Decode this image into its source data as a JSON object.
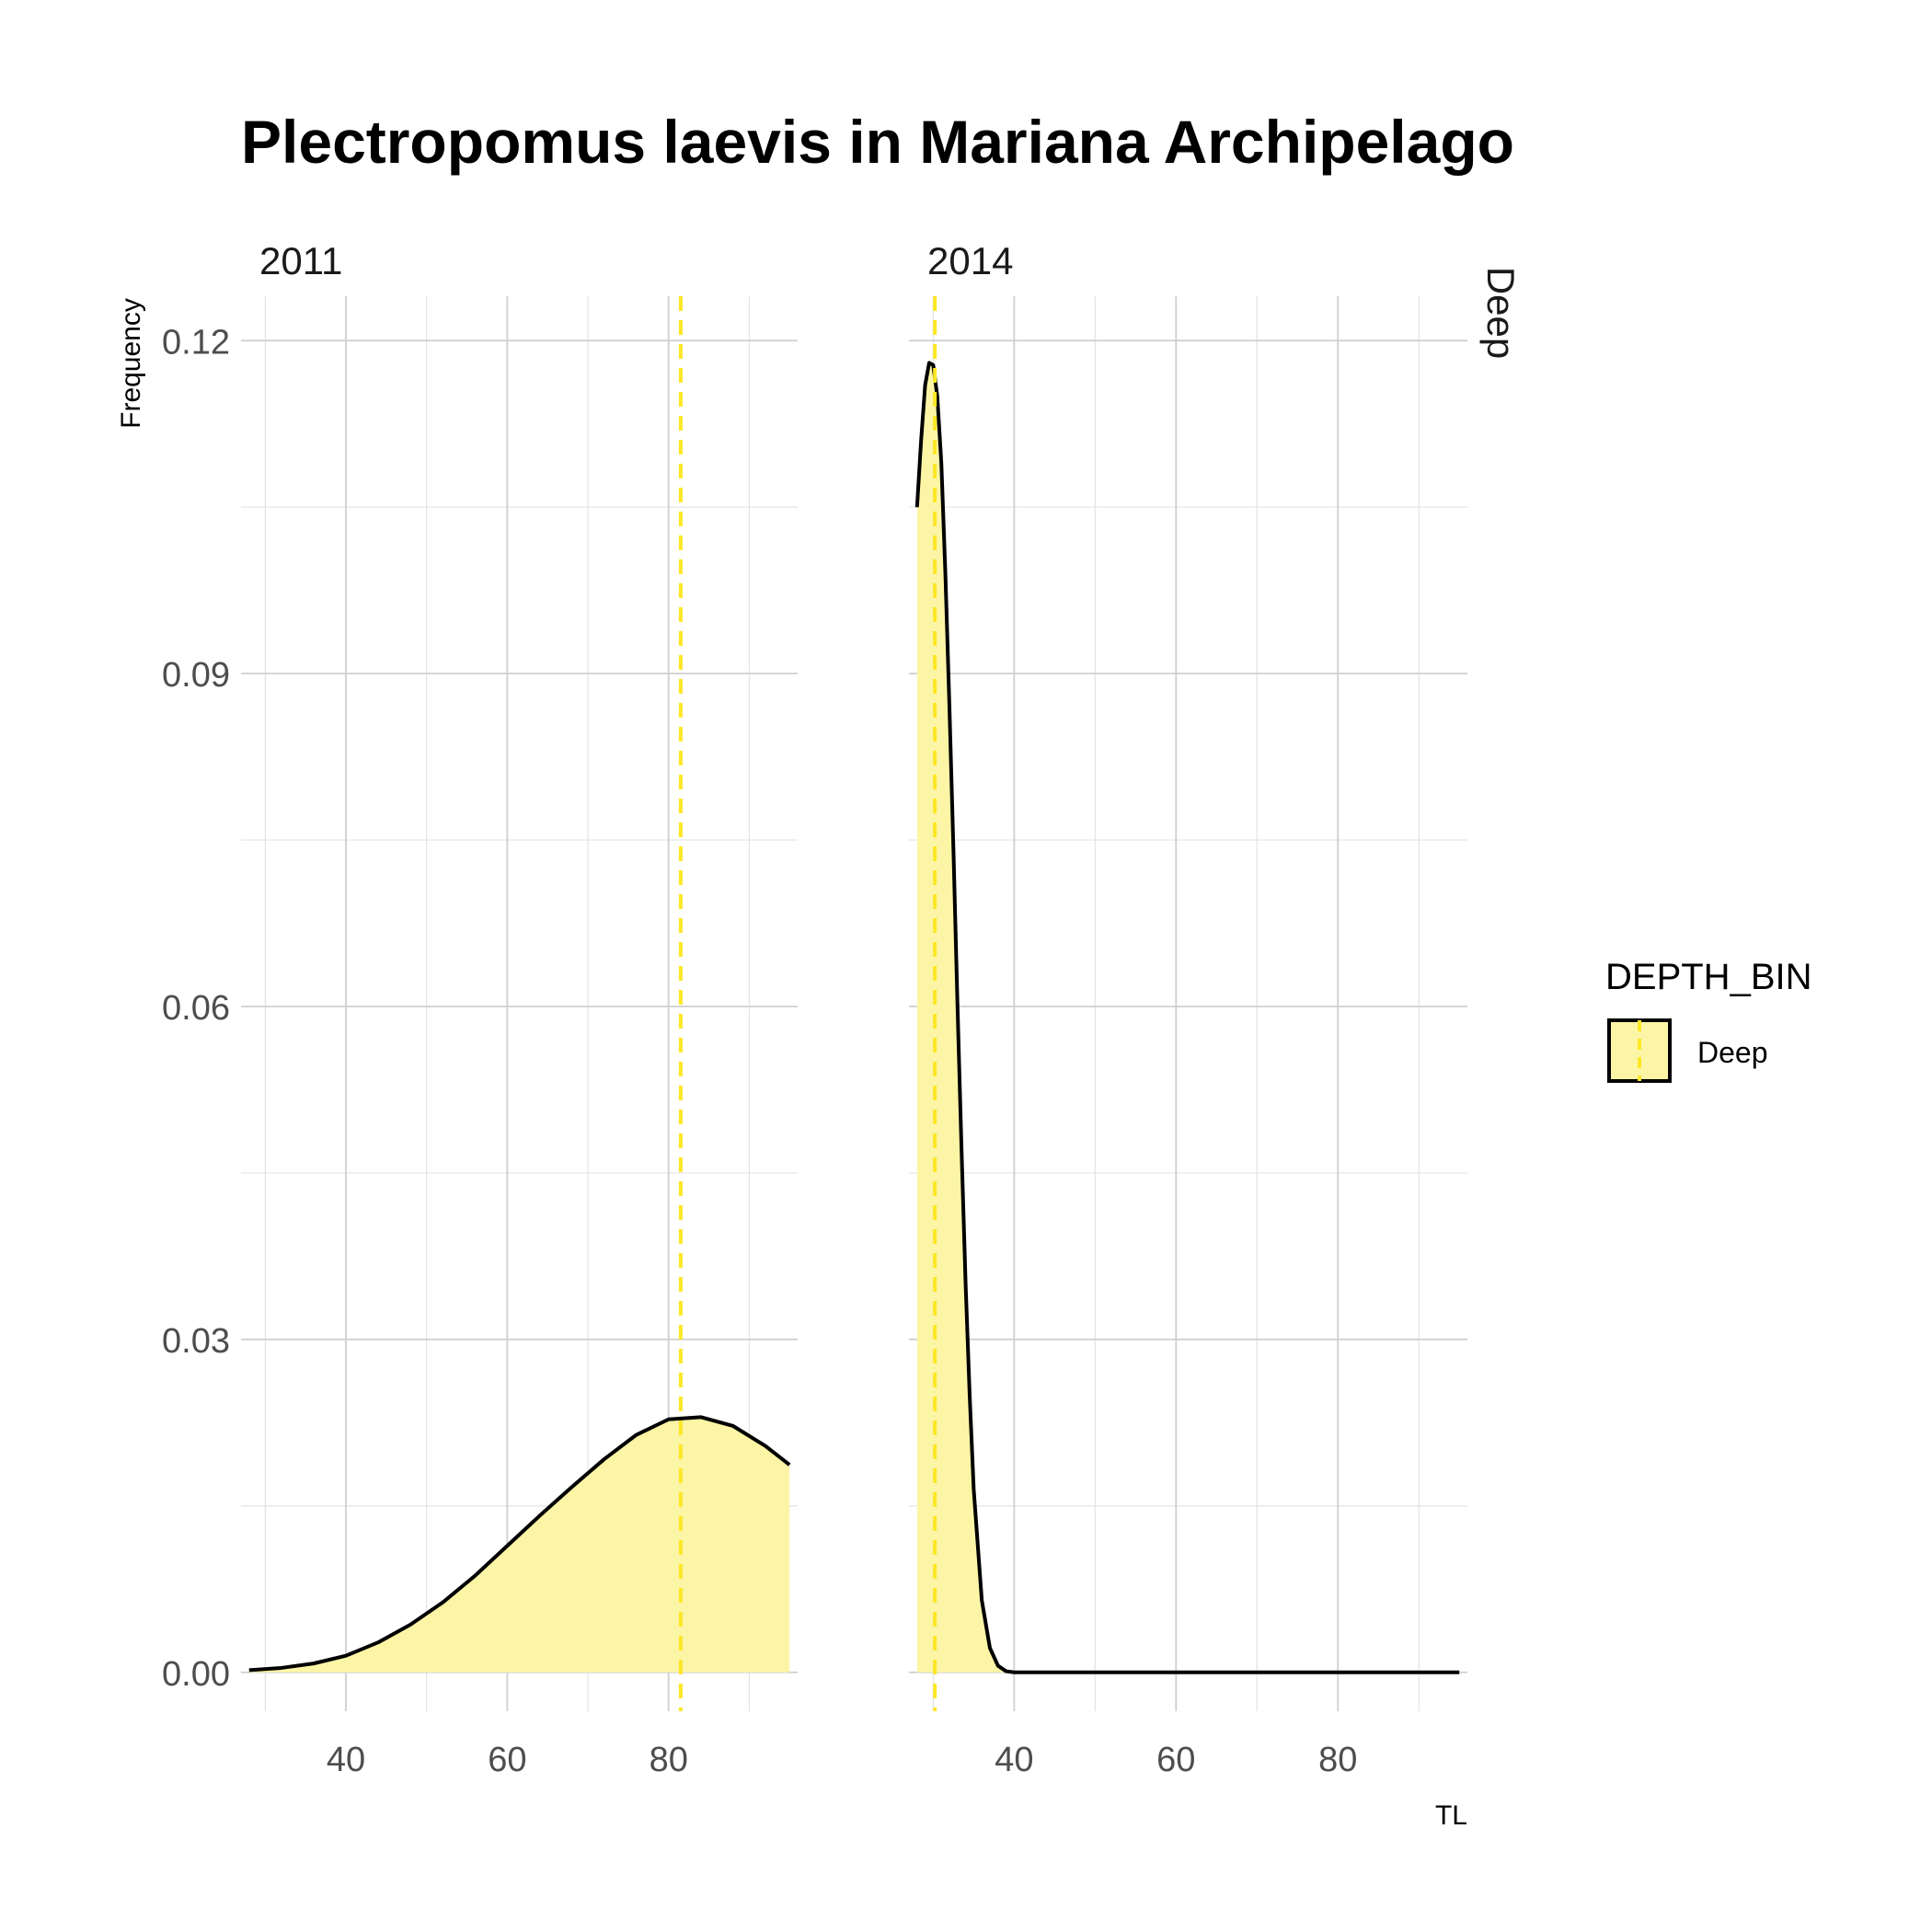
{
  "chart_data": {
    "type": "area",
    "title": "Plectropomus laevis in Mariana Archipelago",
    "xlabel": "TL",
    "ylabel": "Frequency",
    "row_strip": "Deep",
    "grid": true,
    "xlim": [
      27,
      96
    ],
    "ylim": [
      -0.0035,
      0.124
    ],
    "x_ticks": [
      40,
      60,
      80
    ],
    "x_tick_labels": [
      "40",
      "60",
      "80"
    ],
    "y_ticks": [
      0.0,
      0.03,
      0.06,
      0.09,
      0.12
    ],
    "y_tick_labels": [
      "0.00",
      "0.03",
      "0.06",
      "0.09",
      "0.12"
    ],
    "legend": {
      "title": "DEPTH_BIN",
      "position": "right",
      "entries": [
        {
          "label": "Deep",
          "fill": "#fdf5a6",
          "line": "#fde725"
        }
      ]
    },
    "colors": {
      "fill": "#fdf5a6",
      "line": "#000000",
      "mean_line": "#fde725"
    },
    "panels": [
      {
        "strip": "2011",
        "mean_line_x": 81.5,
        "fill_range": [
          28,
          95
        ],
        "series": {
          "name": "Deep",
          "x": [
            28,
            32,
            36,
            40,
            44,
            48,
            52,
            56,
            60,
            64,
            68,
            72,
            76,
            80,
            84,
            88,
            92,
            95
          ],
          "y": [
            0.0002,
            0.0004,
            0.0008,
            0.0015,
            0.0027,
            0.0043,
            0.0063,
            0.0087,
            0.0114,
            0.0141,
            0.0167,
            0.0192,
            0.0214,
            0.0228,
            0.023,
            0.0222,
            0.0204,
            0.0187
          ]
        }
      },
      {
        "strip": "2014",
        "mean_line_x": 30.2,
        "fill_range": [
          28,
          41
        ],
        "series": {
          "name": "Deep",
          "x": [
            28,
            28.5,
            29,
            29.5,
            30,
            30.5,
            31,
            31.5,
            32,
            32.5,
            33,
            33.5,
            34,
            34.5,
            35,
            36,
            37,
            38,
            39,
            40,
            42,
            45,
            50,
            60,
            70,
            80,
            90,
            95
          ],
          "y": [
            0.105,
            0.111,
            0.116,
            0.118,
            0.1178,
            0.115,
            0.109,
            0.099,
            0.087,
            0.074,
            0.06,
            0.047,
            0.035,
            0.025,
            0.0165,
            0.0065,
            0.0022,
            0.0006,
            0.0001,
            0.0,
            0.0,
            0.0,
            0.0,
            0.0,
            0.0,
            0.0,
            0.0,
            0.0
          ]
        }
      }
    ]
  }
}
